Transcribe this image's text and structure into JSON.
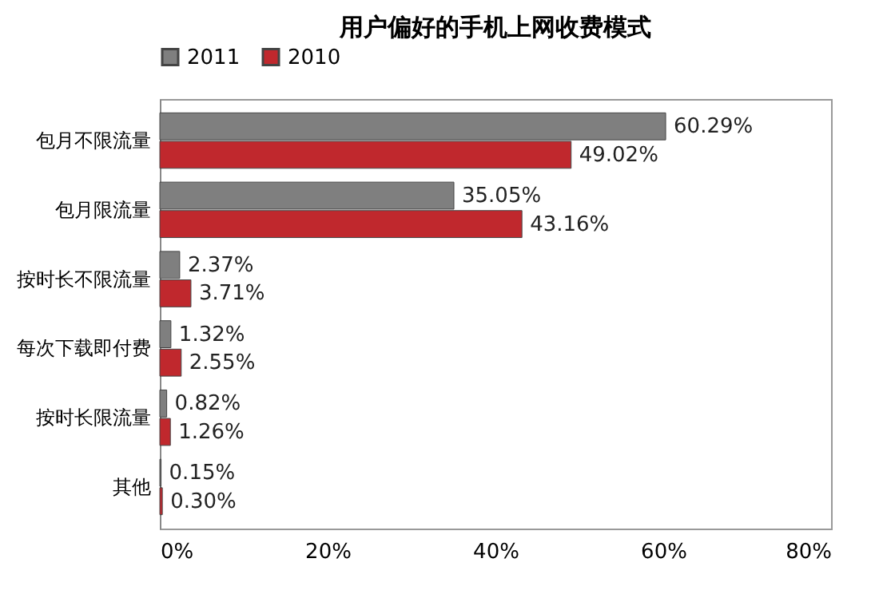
{
  "chart_data": {
    "type": "bar",
    "orientation": "horizontal",
    "title": "用户偏好的手机上网收费模式",
    "categories": [
      "包月不限流量",
      "包月限流量",
      "按时长不限流量",
      "每次下载即付费",
      "按时长限流量",
      "其他"
    ],
    "series": [
      {
        "name": "2011",
        "color": "#7f7f7f",
        "values": [
          60.29,
          35.05,
          2.37,
          1.32,
          0.82,
          0.15
        ],
        "value_labels": [
          "60.29%",
          "35.05%",
          "2.37%",
          "1.32%",
          "0.82%",
          "0.15%"
        ]
      },
      {
        "name": "2010",
        "color": "#c0282d",
        "values": [
          49.02,
          43.16,
          3.71,
          2.55,
          1.26,
          0.3
        ],
        "value_labels": [
          "49.02%",
          "43.16%",
          "3.71%",
          "2.55%",
          "1.26%",
          "0.30%"
        ]
      }
    ],
    "xlim": [
      0,
      80
    ],
    "xticks": [
      {
        "value": 0,
        "label": "0%"
      },
      {
        "value": 20,
        "label": "20%"
      },
      {
        "value": 40,
        "label": "40%"
      },
      {
        "value": 60,
        "label": "60%"
      },
      {
        "value": 80,
        "label": "80%"
      }
    ],
    "grid": false,
    "legend": "top"
  }
}
